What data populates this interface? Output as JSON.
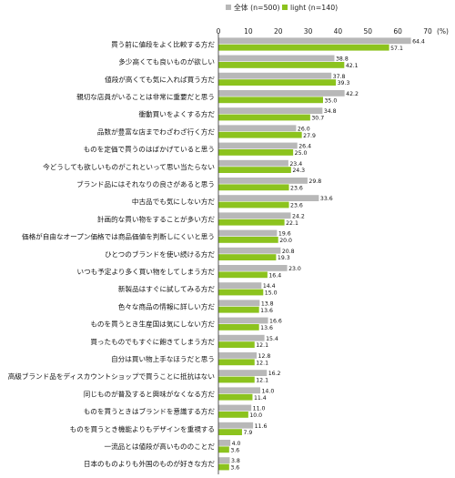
{
  "chart_data": {
    "type": "bar",
    "orientation": "horizontal",
    "unit_label": "(%)",
    "xlim": [
      0,
      70
    ],
    "x_ticks": [
      "0",
      "10",
      "20",
      "30",
      "40",
      "50",
      "60",
      "70"
    ],
    "grid": false,
    "legend_position": "top",
    "categories": [
      "買う前に値段をよく比較する方だ",
      "多少高くても良いものが欲しい",
      "値段が高くても気に入れば買う方だ",
      "親切な店員がいることは非常に重要だと思う",
      "衝動買いをよくする方だ",
      "品数が豊富な店までわざわざ行く方だ",
      "ものを定価で買うのはばかげていると思う",
      "今どうしても欲しいものがこれといって思い当たらない",
      "ブランド品にはそれなりの良さがあると思う",
      "中古品でも気にしない方だ",
      "計画的な買い物をすることが多い方だ",
      "価格が自由なオープン価格では商品価値を判断しにくいと思う",
      "ひとつのブランドを使い続ける方だ",
      "いつも予定より多く買い物をしてしまう方だ",
      "新製品はすぐに試してみる方だ",
      "色々な商品の情報に詳しい方だ",
      "ものを買うとき生産国は気にしない方だ",
      "買ったものでもすぐに飽きてしまう方だ",
      "自分は買い物上手なほうだと思う",
      "高級ブランド品をディスカウントショップで買うことに抵抗はない",
      "同じものが普及すると興味がなくなる方だ",
      "ものを買うときはブランドを意識する方だ",
      "ものを買うとき機能よりもデザインを重視する",
      "一流品とは値段が高いもののことだ",
      "日本のものよりも外国のものが好きな方だ"
    ],
    "series": [
      {
        "name": "全体 (n=500)",
        "color": "#b8b8b8",
        "values": [
          64.4,
          38.8,
          37.8,
          42.2,
          34.8,
          26.0,
          26.4,
          23.4,
          29.8,
          33.6,
          24.2,
          19.6,
          20.8,
          23.0,
          14.4,
          13.8,
          16.6,
          15.4,
          12.8,
          16.2,
          14.0,
          11.0,
          11.6,
          4.0,
          3.8
        ]
      },
      {
        "name": "light (n=140)",
        "color": "#8cc31e",
        "values": [
          57.1,
          42.1,
          39.3,
          35.0,
          30.7,
          27.9,
          25.0,
          24.3,
          23.6,
          23.6,
          22.1,
          20.0,
          19.3,
          16.4,
          15.0,
          13.6,
          13.6,
          12.1,
          12.1,
          12.1,
          11.4,
          10.0,
          7.9,
          3.6,
          3.6
        ]
      }
    ],
    "value_labels": {
      "s0": [
        "64.4",
        "38.8",
        "37.8",
        "42.2",
        "34.8",
        "26.0",
        "26.4",
        "23.4",
        "29.8",
        "33.6",
        "24.2",
        "19.6",
        "20.8",
        "23.0",
        "14.4",
        "13.8",
        "16.6",
        "15.4",
        "12.8",
        "16.2",
        "14.0",
        "11.0",
        "11.6",
        "4.0",
        "3.8"
      ],
      "s1": [
        "57.1",
        "42.1",
        "39.3",
        "35.0",
        "30.7",
        "27.9",
        "25.0",
        "24.3",
        "23.6",
        "23.6",
        "22.1",
        "20.0",
        "19.3",
        "16.4",
        "15.0",
        "13.6",
        "13.6",
        "12.1",
        "12.1",
        "12.1",
        "11.4",
        "10.0",
        "7.9",
        "3.6",
        "3.6"
      ]
    }
  }
}
